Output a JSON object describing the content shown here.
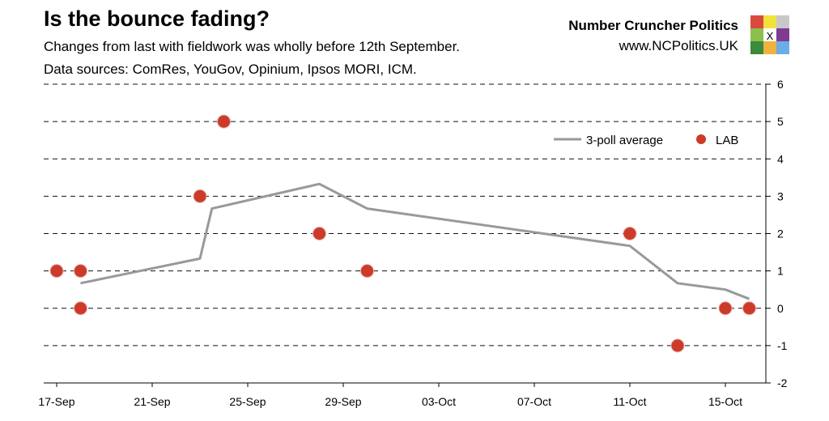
{
  "header": {
    "title": "Is the bounce fading?",
    "subtitle_1": "Changes from last with fieldwork was wholly before 12th September.",
    "subtitle_2": "Data sources: ComRes, YouGov, Opinium, Ipsos MORI, ICM.",
    "brand_name": "Number Cruncher Politics",
    "brand_url": "www.NCPolitics.UK",
    "logo_mark": "X",
    "logo_colors": [
      "#d94a3d",
      "#f2e33b",
      "#c8c8c8",
      "#8cc04c",
      "#ffffff",
      "#7e3b91",
      "#3b8a3e",
      "#f0b23c",
      "#6aaee8"
    ]
  },
  "chart_data": {
    "type": "scatter",
    "title": "",
    "xlabel": "",
    "ylabel": "",
    "x_range": [
      "2017-09-17",
      "2017-10-17"
    ],
    "ylim": [
      -2,
      6
    ],
    "y_ticks": [
      -2,
      -1,
      0,
      1,
      2,
      3,
      4,
      5,
      6
    ],
    "y_axis_position": "right",
    "x_tick_labels": [
      "17-Sep",
      "21-Sep",
      "25-Sep",
      "29-Sep",
      "03-Oct",
      "07-Oct",
      "11-Oct",
      "15-Oct"
    ],
    "x_tick_dates": [
      "2017-09-17",
      "2017-09-21",
      "2017-09-25",
      "2017-09-29",
      "2017-10-03",
      "2017-10-07",
      "2017-10-11",
      "2017-10-15"
    ],
    "grid": "horizontal",
    "legend_position": "top-right",
    "colors": {
      "line": "#999999",
      "points": "#cc3a2a",
      "grid": "#111111"
    },
    "series": [
      {
        "name": "3-poll average",
        "kind": "line",
        "points": [
          {
            "x": "2017-09-18",
            "y": 0.67
          },
          {
            "x": "2017-09-23",
            "y": 1.33
          },
          {
            "x": "2017-09-23 12:00",
            "y": 2.67
          },
          {
            "x": "2017-09-28",
            "y": 3.33
          },
          {
            "x": "2017-09-30",
            "y": 2.67
          },
          {
            "x": "2017-10-11",
            "y": 1.67
          },
          {
            "x": "2017-10-13",
            "y": 0.67
          },
          {
            "x": "2017-10-15",
            "y": 0.5
          },
          {
            "x": "2017-10-16",
            "y": 0.25
          }
        ]
      },
      {
        "name": "LAB",
        "kind": "scatter",
        "points": [
          {
            "x": "2017-09-17",
            "y": 1
          },
          {
            "x": "2017-09-18",
            "y": 1
          },
          {
            "x": "2017-09-18",
            "y": 0
          },
          {
            "x": "2017-09-23",
            "y": 3
          },
          {
            "x": "2017-09-24",
            "y": 5
          },
          {
            "x": "2017-09-28",
            "y": 2
          },
          {
            "x": "2017-09-30",
            "y": 1
          },
          {
            "x": "2017-10-11",
            "y": 2
          },
          {
            "x": "2017-10-13",
            "y": -1
          },
          {
            "x": "2017-10-15",
            "y": 0
          },
          {
            "x": "2017-10-16",
            "y": 0
          }
        ]
      }
    ]
  }
}
